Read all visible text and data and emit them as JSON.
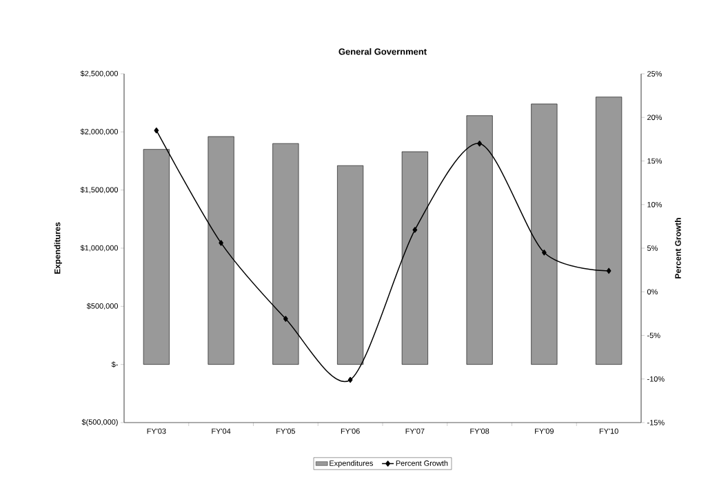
{
  "chart_data": {
    "type": "bar",
    "title": "General Government",
    "ylabel": "Expenditures",
    "y2label": "Percent Growth",
    "categories": [
      "FY'03",
      "FY'04",
      "FY'05",
      "FY'06",
      "FY'07",
      "FY'08",
      "FY'09",
      "FY'10"
    ],
    "series": [
      {
        "name": "Expenditures",
        "color": "#999999",
        "values": [
          1850000,
          1960000,
          1900000,
          1710000,
          1830000,
          2140000,
          2240000,
          2300000
        ]
      },
      {
        "name": "Percent Growth",
        "type": "line",
        "axis": "y2",
        "color": "#000000",
        "values": [
          18.5,
          5.6,
          -3.1,
          -10.1,
          7.1,
          17.0,
          4.5,
          2.4
        ]
      }
    ],
    "ylim": [
      -500000,
      2500000
    ],
    "yticks": [
      {
        "value": -500000,
        "label": "$(500,000)"
      },
      {
        "value": 0,
        "label": "$-"
      },
      {
        "value": 500000,
        "label": "$500,000"
      },
      {
        "value": 1000000,
        "label": "$1,000,000"
      },
      {
        "value": 1500000,
        "label": "$1,500,000"
      },
      {
        "value": 2000000,
        "label": "$2,000,000"
      },
      {
        "value": 2500000,
        "label": "$2,500,000"
      }
    ],
    "y2lim": [
      -15,
      25
    ],
    "y2ticks": [
      {
        "value": -15,
        "label": "-15%"
      },
      {
        "value": -10,
        "label": "-10%"
      },
      {
        "value": -5,
        "label": "-5%"
      },
      {
        "value": 0,
        "label": "0%"
      },
      {
        "value": 5,
        "label": "5%"
      },
      {
        "value": 10,
        "label": "10%"
      },
      {
        "value": 15,
        "label": "15%"
      },
      {
        "value": 20,
        "label": "20%"
      },
      {
        "value": 25,
        "label": "25%"
      }
    ],
    "legend": "bottom",
    "marker": "diamond"
  }
}
